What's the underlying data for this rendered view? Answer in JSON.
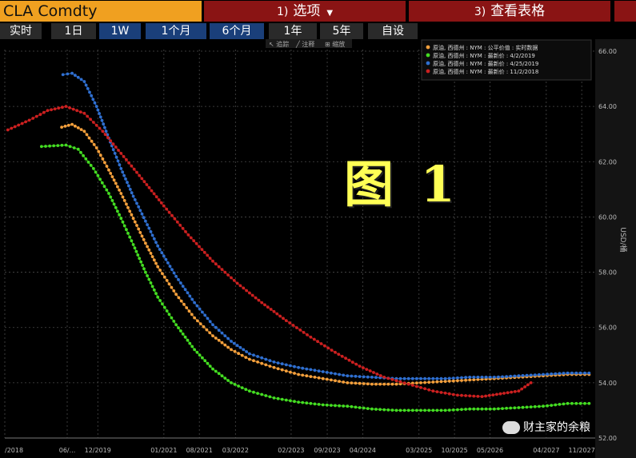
{
  "header": {
    "ticker": "CLA Comdty",
    "options_num": "1)",
    "options_label": "选项",
    "table_num": "3)",
    "table_label": "查看表格"
  },
  "tabs": [
    "实时",
    "1日",
    "1W",
    "1个月",
    "6个月",
    "1年",
    "5年",
    "自设"
  ],
  "active_tab": "1W",
  "toolbar": {
    "left": "↖ 追踪",
    "mid": "╱ 注释",
    "right": "⊞ 缩放"
  },
  "watermark": "图 1",
  "source_mark": "财主家的余粮",
  "colors": {
    "orange": "#f5a03c",
    "green": "#44dd22",
    "blue": "#2f6fd0",
    "red": "#cc2020",
    "grid": "#4a4a4a"
  },
  "chart_data": {
    "type": "line",
    "ylabel": "USD/桶",
    "ylim": [
      52.0,
      66.0
    ],
    "yticks": [
      "52.00",
      "54.00",
      "56.00",
      "58.00",
      "60.00",
      "62.00",
      "64.00",
      "66.00"
    ],
    "xlim": [
      2018.4,
      2028.05
    ],
    "xticks": [
      {
        "label": "/2018",
        "x": 2018.4
      },
      {
        "label": "06/...",
        "x": 2019.42
      },
      {
        "label": "12/2019",
        "x": 2019.92
      },
      {
        "label": "01/2021",
        "x": 2021.0
      },
      {
        "label": "08/2021",
        "x": 2021.58
      },
      {
        "label": "03/2022",
        "x": 2022.17
      },
      {
        "label": "02/2023",
        "x": 2023.08
      },
      {
        "label": "09/2023",
        "x": 2023.67
      },
      {
        "label": "04/2024",
        "x": 2024.25
      },
      {
        "label": "03/2025",
        "x": 2025.17
      },
      {
        "label": "10/2025",
        "x": 2025.75
      },
      {
        "label": "05/2026",
        "x": 2026.33
      },
      {
        "label": "04/2027",
        "x": 2027.25
      },
      {
        "label": "11/2027",
        "x": 2027.83
      }
    ],
    "legend_position": "top-right",
    "series": [
      {
        "name": "原油, 西德州 : NYM : 公平价值 : 实时数据",
        "color": "#f5a03c",
        "x": [
          2019.33,
          2019.5,
          2019.7,
          2019.9,
          2020.1,
          2020.3,
          2020.5,
          2020.7,
          2020.9,
          2021.2,
          2021.5,
          2021.8,
          2022.1,
          2022.4,
          2022.8,
          2023.2,
          2023.6,
          2024.0,
          2024.4,
          2024.8,
          2025.2,
          2025.6,
          2026.0,
          2026.4,
          2026.8,
          2027.2,
          2027.6,
          2027.95
        ],
        "y": [
          63.25,
          63.35,
          63.1,
          62.5,
          61.7,
          60.85,
          59.95,
          59.05,
          58.2,
          57.2,
          56.35,
          55.7,
          55.2,
          54.85,
          54.55,
          54.3,
          54.15,
          54.0,
          53.95,
          53.95,
          54.0,
          54.05,
          54.1,
          54.15,
          54.2,
          54.25,
          54.3,
          54.3
        ]
      },
      {
        "name": "原油, 西德州 : NYM : 最新价 : 4/2/2019",
        "color": "#44dd22",
        "x": [
          2019.0,
          2019.4,
          2019.6,
          2019.85,
          2020.1,
          2020.3,
          2020.5,
          2020.7,
          2020.9,
          2021.2,
          2021.5,
          2021.8,
          2022.1,
          2022.4,
          2022.8,
          2023.2,
          2023.6,
          2024.0,
          2024.4,
          2024.8,
          2025.2,
          2025.6,
          2026.0,
          2026.4,
          2026.8,
          2027.2,
          2027.6,
          2027.95
        ],
        "y": [
          62.55,
          62.6,
          62.45,
          61.75,
          60.85,
          59.95,
          59.0,
          58.0,
          57.1,
          56.1,
          55.2,
          54.5,
          54.0,
          53.7,
          53.45,
          53.3,
          53.2,
          53.15,
          53.05,
          53.0,
          53.0,
          53.0,
          53.05,
          53.05,
          53.1,
          53.15,
          53.25,
          53.25
        ]
      },
      {
        "name": "原油, 西德州 : NYM : 最新价 : 4/25/2019",
        "color": "#2f6fd0",
        "x": [
          2019.35,
          2019.5,
          2019.7,
          2019.9,
          2020.1,
          2020.3,
          2020.5,
          2020.7,
          2020.9,
          2021.2,
          2021.5,
          2021.8,
          2022.1,
          2022.4,
          2022.8,
          2023.2,
          2023.6,
          2024.0,
          2024.4,
          2024.8,
          2025.2,
          2025.6,
          2026.0,
          2026.4,
          2026.8,
          2027.2,
          2027.6,
          2027.95
        ],
        "y": [
          65.15,
          65.2,
          64.9,
          64.0,
          62.85,
          61.75,
          60.75,
          59.85,
          58.95,
          57.85,
          56.9,
          56.1,
          55.5,
          55.05,
          54.75,
          54.55,
          54.4,
          54.25,
          54.2,
          54.15,
          54.15,
          54.15,
          54.2,
          54.2,
          54.25,
          54.3,
          54.35,
          54.35
        ]
      },
      {
        "name": "原油, 西德州 : NYM : 最新价 : 11/2/2018",
        "color": "#cc2020",
        "x": [
          2018.45,
          2018.8,
          2019.1,
          2019.4,
          2019.7,
          2020.0,
          2020.3,
          2020.6,
          2021.0,
          2021.4,
          2021.8,
          2022.2,
          2022.6,
          2023.0,
          2023.4,
          2023.8,
          2024.2,
          2024.6,
          2025.0,
          2025.4,
          2025.8,
          2026.2,
          2026.5,
          2026.8,
          2027.0
        ],
        "y": [
          63.15,
          63.5,
          63.85,
          64.0,
          63.75,
          63.1,
          62.3,
          61.5,
          60.4,
          59.35,
          58.4,
          57.6,
          56.9,
          56.25,
          55.65,
          55.1,
          54.6,
          54.2,
          53.95,
          53.7,
          53.55,
          53.5,
          53.6,
          53.7,
          54.0
        ]
      }
    ]
  }
}
